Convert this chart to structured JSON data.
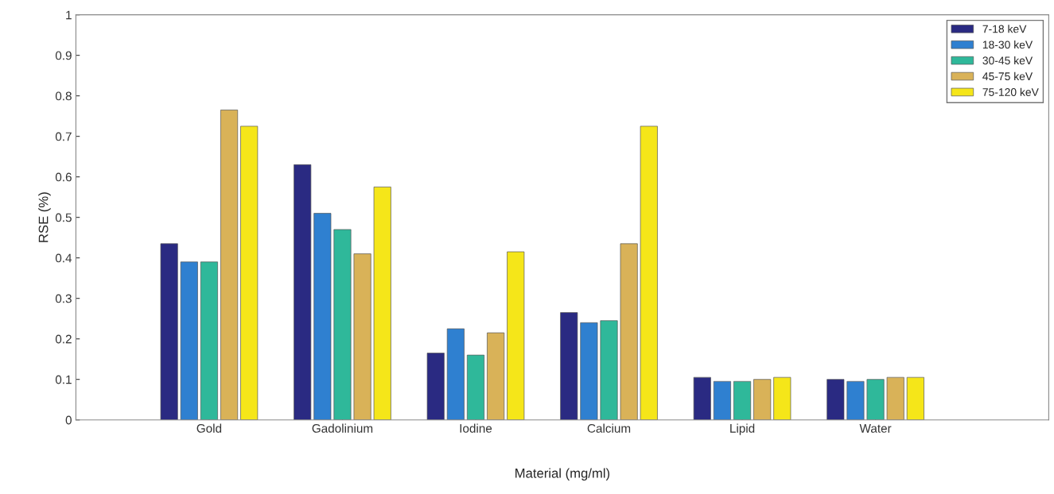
{
  "chart_data": {
    "type": "bar",
    "xlabel": "Material (mg/ml)",
    "ylabel": "RSE (%)",
    "categories": [
      "Gold",
      "Gadolinium",
      "Iodine",
      "Calcium",
      "Lipid",
      "Water"
    ],
    "series": [
      {
        "name": "7-18 keV",
        "color": "#2a2a82",
        "values": [
          0.435,
          0.63,
          0.165,
          0.265,
          0.105,
          0.1
        ]
      },
      {
        "name": "18-30 keV",
        "color": "#2f80d0",
        "values": [
          0.39,
          0.51,
          0.225,
          0.24,
          0.095,
          0.095
        ]
      },
      {
        "name": "30-45 keV",
        "color": "#2fb89a",
        "values": [
          0.39,
          0.47,
          0.16,
          0.245,
          0.095,
          0.1
        ]
      },
      {
        "name": "45-75 keV",
        "color": "#d9b258",
        "values": [
          0.765,
          0.41,
          0.215,
          0.435,
          0.1,
          0.105
        ]
      },
      {
        "name": "75-120 keV",
        "color": "#f5e619",
        "values": [
          0.725,
          0.575,
          0.415,
          0.725,
          0.105,
          0.105
        ]
      }
    ],
    "ylim": [
      0,
      1
    ],
    "yticks": [
      0,
      0.1,
      0.2,
      0.3,
      0.4,
      0.5,
      0.6,
      0.7,
      0.8,
      0.9,
      1
    ],
    "grid": false,
    "legend": "top right"
  }
}
